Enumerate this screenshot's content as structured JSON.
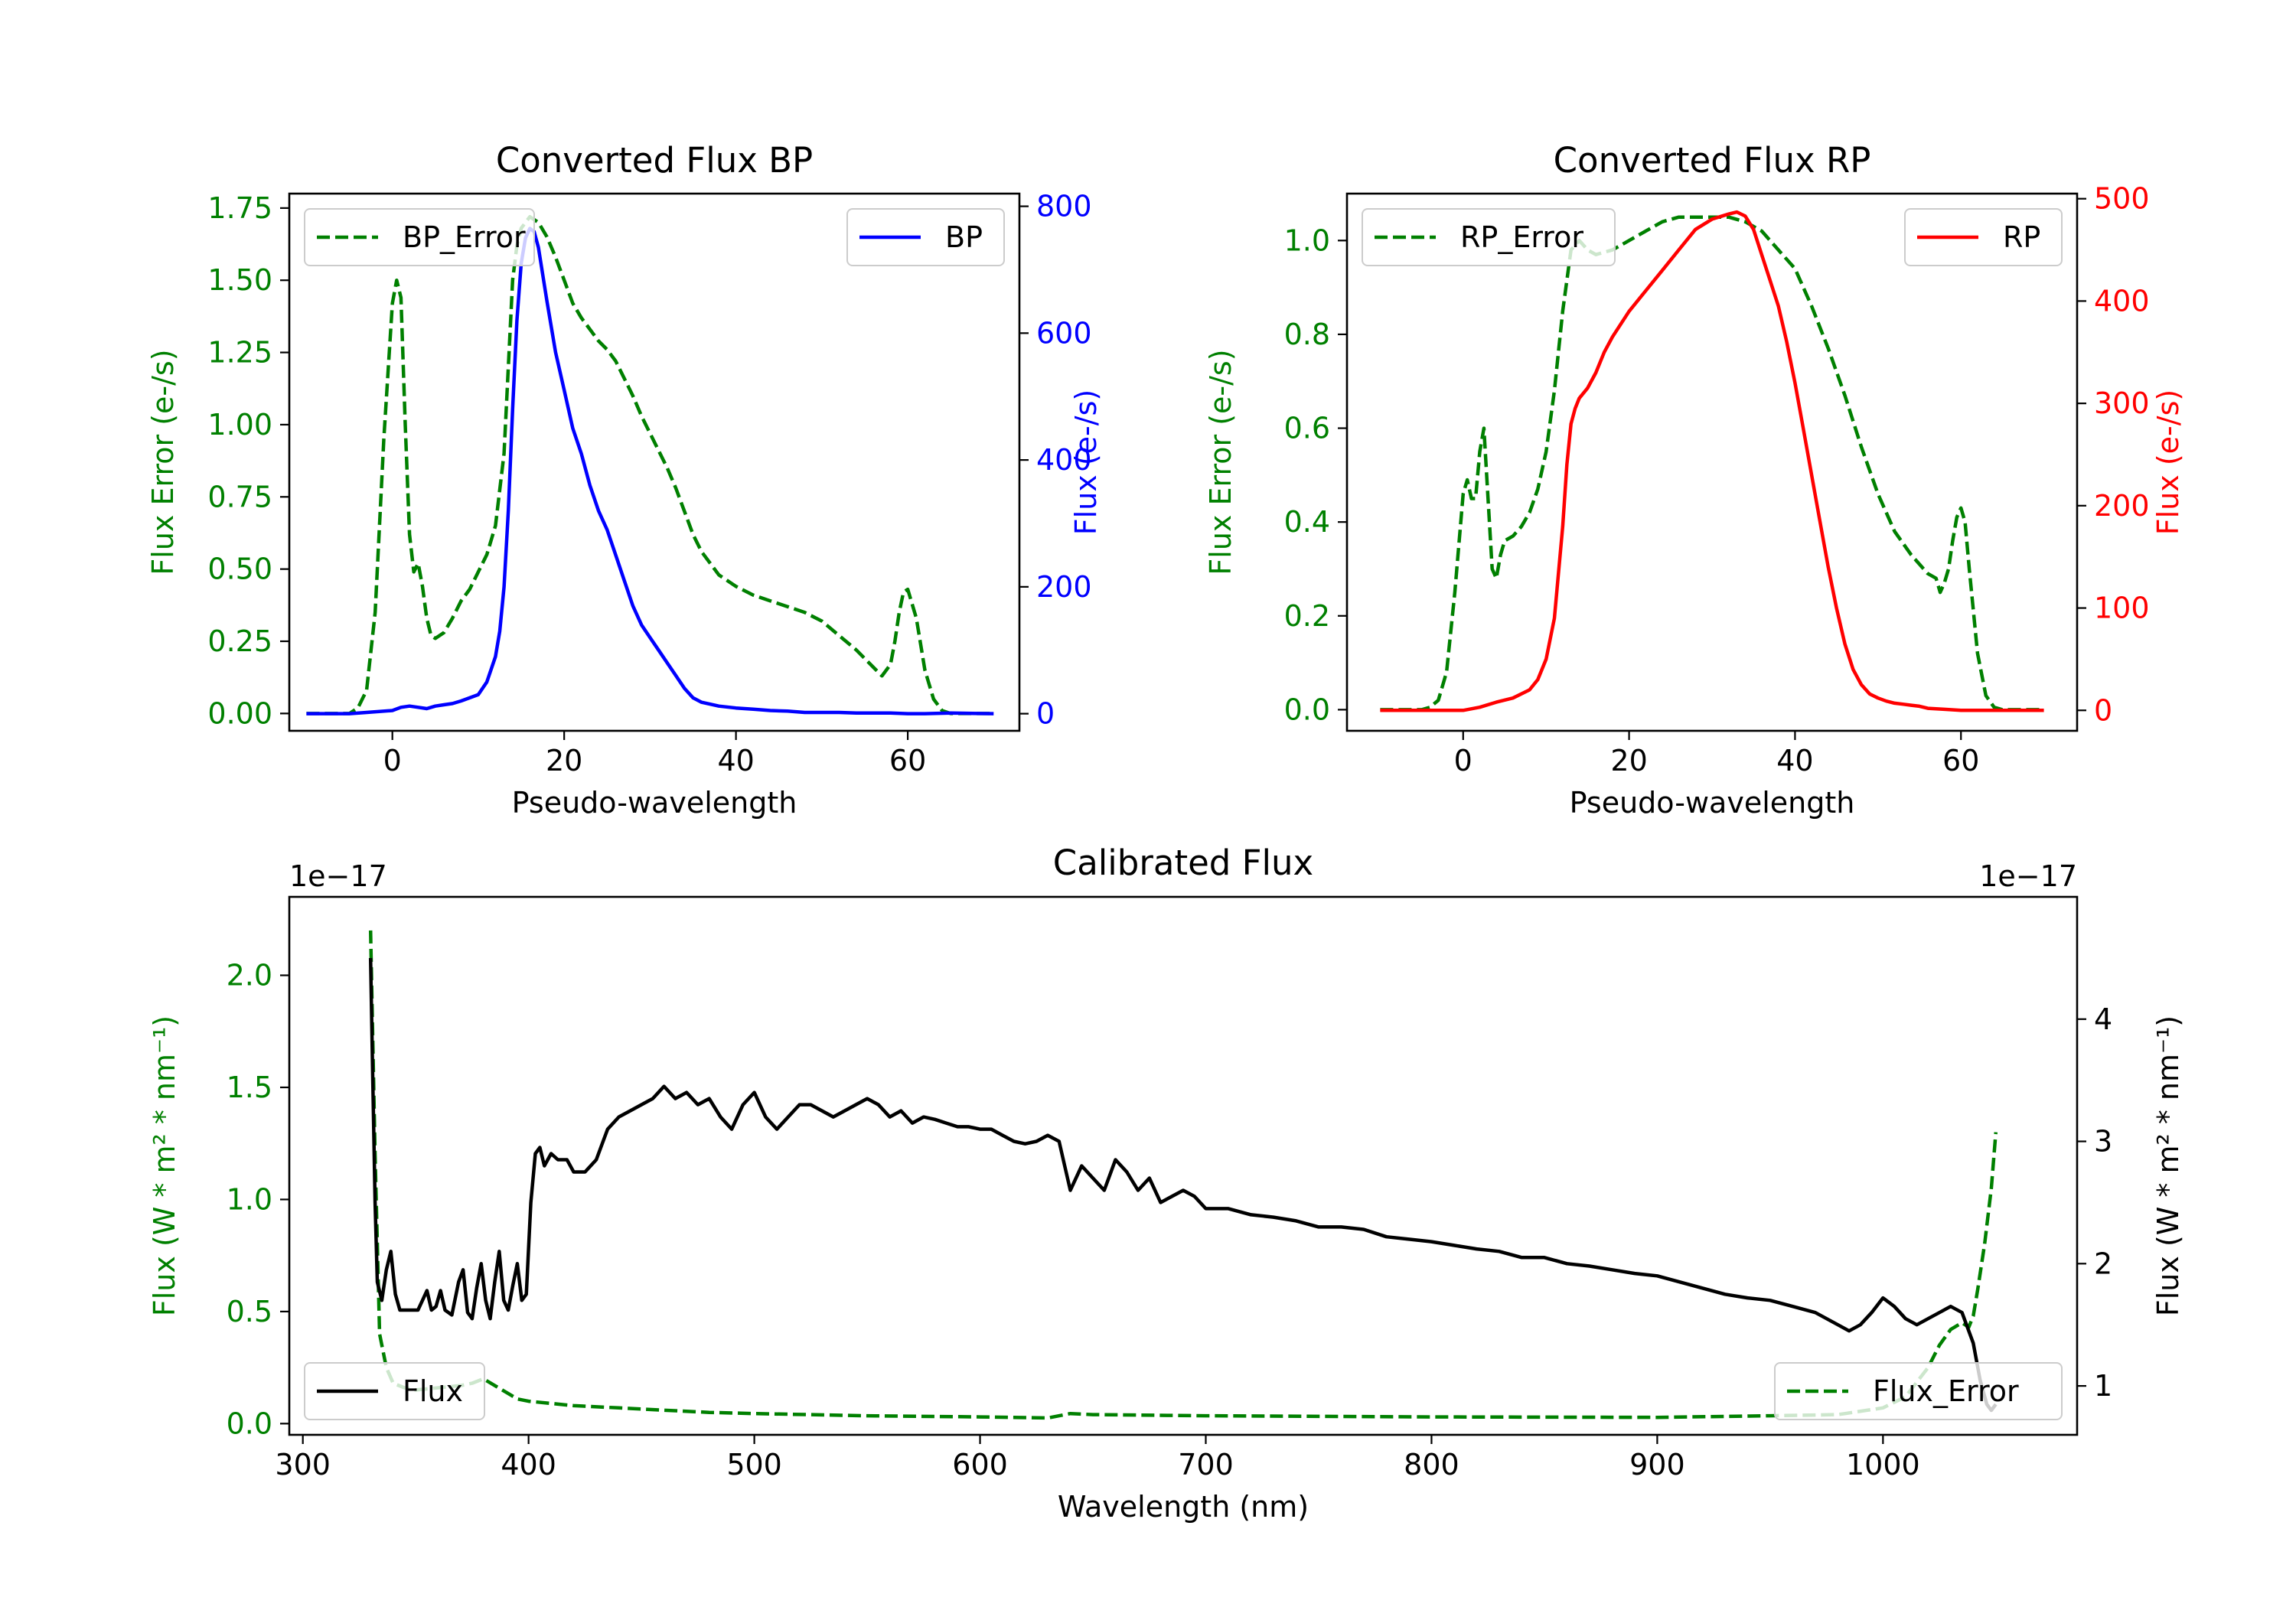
{
  "colors": {
    "green": "#008000",
    "blue": "#0000ff",
    "red": "#ff0000",
    "black": "#000000"
  },
  "chart_data": [
    {
      "type": "line",
      "title": "Converted Flux BP",
      "xlabel": "Pseudo-wavelength",
      "ylabel_left": "Flux Error (e-/s)",
      "ylabel_right": "Flux (e-/s)",
      "xlim": [
        -12,
        73
      ],
      "ylim_left": [
        -0.06,
        1.8
      ],
      "ylim_right": [
        -27,
        820
      ],
      "xticks": [
        0,
        20,
        40,
        60
      ],
      "yticks_left": [
        "0.00",
        "0.25",
        "0.50",
        "0.75",
        "1.00",
        "1.25",
        "1.50",
        "1.75"
      ],
      "yticks_right": [
        0,
        200,
        400,
        600,
        800
      ],
      "legend_left": "BP_Error",
      "legend_right": "BP",
      "series": [
        {
          "name": "BP_Error",
          "axis": "left",
          "color": "#008000",
          "dashed": true,
          "x": [
            -10,
            -5,
            -4,
            -3,
            -2,
            -1,
            0,
            0.5,
            1,
            1.5,
            2,
            2.5,
            3,
            3.5,
            4,
            4.5,
            5,
            6,
            7,
            8,
            9,
            10,
            11,
            12,
            13,
            13.5,
            14,
            14.5,
            15,
            16,
            17,
            18,
            19,
            20,
            21,
            22,
            23,
            24,
            25,
            26,
            27,
            28,
            29,
            30,
            31,
            32,
            33,
            34,
            35,
            36,
            37,
            38,
            40,
            42,
            44,
            46,
            48,
            50,
            52,
            54,
            56,
            57,
            58,
            58.5,
            59,
            59.5,
            60,
            61,
            62,
            63,
            64,
            65,
            70
          ],
          "y": [
            0,
            0,
            0.02,
            0.08,
            0.35,
            0.95,
            1.42,
            1.5,
            1.44,
            1.0,
            0.62,
            0.49,
            0.52,
            0.44,
            0.33,
            0.27,
            0.26,
            0.28,
            0.33,
            0.39,
            0.43,
            0.49,
            0.55,
            0.65,
            0.9,
            1.2,
            1.5,
            1.62,
            1.68,
            1.72,
            1.7,
            1.65,
            1.58,
            1.5,
            1.42,
            1.37,
            1.33,
            1.29,
            1.26,
            1.22,
            1.16,
            1.1,
            1.03,
            0.97,
            0.91,
            0.85,
            0.78,
            0.7,
            0.62,
            0.56,
            0.52,
            0.48,
            0.44,
            0.41,
            0.39,
            0.37,
            0.35,
            0.32,
            0.27,
            0.22,
            0.16,
            0.13,
            0.17,
            0.25,
            0.35,
            0.42,
            0.43,
            0.33,
            0.15,
            0.05,
            0.01,
            0,
            0
          ]
        },
        {
          "name": "BP",
          "axis": "right",
          "color": "#0000ff",
          "dashed": false,
          "x": [
            -10,
            -5,
            -3,
            0,
            1,
            2,
            3,
            4,
            5,
            6,
            7,
            8,
            9,
            10,
            11,
            12,
            12.5,
            13,
            13.5,
            14,
            14.5,
            15,
            15.5,
            16,
            16.5,
            17,
            18,
            19,
            20,
            21,
            22,
            23,
            24,
            25,
            26,
            27,
            28,
            29,
            30,
            31,
            32,
            33,
            34,
            35,
            36,
            37,
            38,
            40,
            42,
            44,
            46,
            48,
            50,
            52,
            54,
            56,
            58,
            60,
            62,
            65,
            70
          ],
          "y": [
            0,
            0,
            2,
            5,
            10,
            12,
            10,
            8,
            12,
            14,
            16,
            20,
            25,
            30,
            50,
            90,
            130,
            200,
            320,
            480,
            620,
            710,
            750,
            765,
            760,
            735,
            650,
            570,
            510,
            450,
            410,
            360,
            320,
            290,
            250,
            210,
            170,
            140,
            120,
            100,
            80,
            60,
            40,
            25,
            18,
            15,
            12,
            9,
            7,
            5,
            4,
            2,
            2,
            2,
            1,
            1,
            1,
            0,
            0,
            1,
            0
          ]
        }
      ]
    },
    {
      "type": "line",
      "title": "Converted Flux RP",
      "xlabel": "Pseudo-wavelength",
      "ylabel_left": "Flux Error (e-/s)",
      "ylabel_right": "Flux (e-/s)",
      "xlim": [
        -14,
        74
      ],
      "ylim_left": [
        -0.045,
        1.1
      ],
      "ylim_right": [
        -20,
        505
      ],
      "xticks": [
        0,
        20,
        40,
        60
      ],
      "yticks_left": [
        "0.0",
        "0.2",
        "0.4",
        "0.6",
        "0.8",
        "1.0"
      ],
      "yticks_right": [
        0,
        100,
        200,
        300,
        400,
        500
      ],
      "legend_left": "RP_Error",
      "legend_right": "RP",
      "series": [
        {
          "name": "RP_Error",
          "axis": "left",
          "color": "#008000",
          "dashed": true,
          "x": [
            -10,
            -5,
            -4,
            -3,
            -2,
            -1,
            0,
            0.5,
            1,
            1.5,
            2,
            2.5,
            3,
            3.5,
            4,
            4.5,
            5,
            6,
            7,
            8,
            9,
            10,
            11,
            12,
            13,
            14,
            15,
            16,
            18,
            20,
            22,
            24,
            26,
            28,
            30,
            32,
            34,
            36,
            38,
            40,
            42,
            44,
            46,
            48,
            50,
            52,
            54,
            56,
            57,
            57.5,
            58,
            58.5,
            59,
            59.5,
            60,
            60.5,
            61,
            62,
            63,
            64,
            65,
            70
          ],
          "y": [
            0,
            0,
            0.005,
            0.02,
            0.08,
            0.25,
            0.46,
            0.49,
            0.45,
            0.45,
            0.55,
            0.6,
            0.45,
            0.3,
            0.28,
            0.33,
            0.36,
            0.37,
            0.39,
            0.42,
            0.47,
            0.55,
            0.68,
            0.85,
            0.98,
            1.0,
            0.98,
            0.97,
            0.98,
            1.0,
            1.02,
            1.04,
            1.05,
            1.05,
            1.05,
            1.05,
            1.04,
            1.02,
            0.98,
            0.94,
            0.86,
            0.77,
            0.67,
            0.56,
            0.46,
            0.38,
            0.33,
            0.29,
            0.28,
            0.25,
            0.27,
            0.3,
            0.36,
            0.41,
            0.43,
            0.4,
            0.3,
            0.12,
            0.03,
            0.005,
            0,
            0
          ]
        },
        {
          "name": "RP",
          "axis": "right",
          "color": "#ff0000",
          "dashed": false,
          "x": [
            -10,
            -5,
            -2,
            0,
            2,
            4,
            6,
            8,
            9,
            10,
            11,
            12,
            12.5,
            13,
            13.5,
            14,
            14.5,
            15,
            16,
            17,
            18,
            20,
            22,
            24,
            26,
            28,
            30,
            32,
            33,
            34,
            35,
            36,
            37,
            38,
            39,
            40,
            41,
            42,
            43,
            44,
            45,
            46,
            47,
            48,
            49,
            50,
            51,
            52,
            53,
            54,
            55,
            56,
            58,
            60,
            62,
            65,
            70
          ],
          "y": [
            0,
            0,
            0,
            0,
            3,
            8,
            12,
            20,
            30,
            50,
            90,
            180,
            240,
            280,
            295,
            305,
            310,
            315,
            330,
            350,
            365,
            390,
            410,
            430,
            450,
            470,
            480,
            485,
            487,
            483,
            470,
            445,
            420,
            395,
            360,
            320,
            275,
            230,
            185,
            140,
            100,
            65,
            40,
            25,
            16,
            12,
            9,
            7,
            6,
            5,
            4,
            2,
            1,
            0,
            0,
            0,
            0
          ]
        }
      ]
    },
    {
      "type": "line",
      "title": "Calibrated Flux",
      "xlabel": "Wavelength (nm)",
      "ylabel_left": "Flux (W * m² * nm⁻¹)",
      "ylabel_right": "Flux (W * m² * nm⁻¹)",
      "offset_left": "1e−17",
      "offset_right": "1e−17",
      "xlim": [
        294,
        1086
      ],
      "ylim_left": [
        -0.05,
        2.35
      ],
      "ylim_right": [
        0.6,
        5.0
      ],
      "xticks": [
        300,
        400,
        500,
        600,
        700,
        800,
        900,
        1000
      ],
      "yticks_left": [
        "0.0",
        "0.5",
        "1.0",
        "1.5",
        "2.0"
      ],
      "yticks_right": [
        1,
        2,
        3,
        4
      ],
      "legend_left": "Flux",
      "legend_right": "Flux_Error",
      "series": [
        {
          "name": "Flux_Error",
          "axis": "left",
          "color": "#008000",
          "dashed": true,
          "x": [
            330,
            332,
            334,
            337,
            340,
            345,
            350,
            360,
            370,
            375,
            380,
            385,
            390,
            395,
            400,
            410,
            420,
            440,
            460,
            480,
            500,
            550,
            600,
            630,
            640,
            650,
            700,
            800,
            900,
            950,
            980,
            1000,
            1010,
            1020,
            1025,
            1030,
            1035,
            1038,
            1040,
            1042,
            1045,
            1048,
            1050
          ],
          "y": [
            2.2,
            1.2,
            0.4,
            0.25,
            0.18,
            0.16,
            0.15,
            0.16,
            0.17,
            0.18,
            0.2,
            0.17,
            0.14,
            0.11,
            0.1,
            0.09,
            0.08,
            0.07,
            0.06,
            0.05,
            0.045,
            0.035,
            0.03,
            0.025,
            0.045,
            0.04,
            0.035,
            0.03,
            0.028,
            0.035,
            0.04,
            0.07,
            0.12,
            0.25,
            0.35,
            0.42,
            0.45,
            0.43,
            0.48,
            0.6,
            0.8,
            1.05,
            1.3
          ]
        },
        {
          "name": "Flux",
          "axis": "right",
          "color": "#000000",
          "dashed": false,
          "x": [
            330,
            331,
            332,
            333,
            335,
            337,
            339,
            341,
            343,
            347,
            351,
            353,
            355,
            357,
            359,
            361,
            363,
            366,
            369,
            371,
            373,
            375,
            377,
            379,
            381,
            383,
            385,
            387,
            389,
            391,
            393,
            395,
            397,
            399,
            401,
            403,
            405,
            407,
            410,
            413,
            417,
            420,
            425,
            430,
            435,
            440,
            445,
            450,
            455,
            460,
            465,
            470,
            475,
            480,
            485,
            490,
            495,
            500,
            505,
            510,
            515,
            520,
            525,
            530,
            535,
            540,
            545,
            550,
            555,
            560,
            565,
            570,
            575,
            580,
            585,
            590,
            595,
            600,
            605,
            610,
            615,
            620,
            625,
            630,
            635,
            640,
            645,
            650,
            655,
            660,
            665,
            670,
            675,
            680,
            685,
            690,
            695,
            700,
            710,
            720,
            730,
            740,
            750,
            760,
            770,
            780,
            790,
            800,
            810,
            820,
            830,
            840,
            850,
            860,
            870,
            880,
            890,
            900,
            910,
            920,
            930,
            940,
            950,
            960,
            970,
            980,
            985,
            990,
            995,
            1000,
            1005,
            1010,
            1015,
            1020,
            1025,
            1030,
            1035,
            1040,
            1043,
            1046,
            1048,
            1050
          ],
          "y": [
            4.5,
            3.5,
            2.5,
            1.85,
            1.7,
            1.95,
            2.1,
            1.75,
            1.62,
            1.62,
            1.62,
            1.7,
            1.78,
            1.62,
            1.65,
            1.78,
            1.62,
            1.58,
            1.85,
            1.95,
            1.6,
            1.55,
            1.8,
            2.0,
            1.7,
            1.55,
            1.85,
            2.1,
            1.7,
            1.62,
            1.82,
            2.0,
            1.7,
            1.75,
            2.5,
            2.9,
            2.95,
            2.8,
            2.9,
            2.85,
            2.85,
            2.75,
            2.75,
            2.85,
            3.1,
            3.2,
            3.25,
            3.3,
            3.35,
            3.45,
            3.35,
            3.4,
            3.3,
            3.35,
            3.2,
            3.1,
            3.3,
            3.4,
            3.2,
            3.1,
            3.2,
            3.3,
            3.3,
            3.25,
            3.2,
            3.25,
            3.3,
            3.35,
            3.3,
            3.2,
            3.25,
            3.15,
            3.2,
            3.18,
            3.15,
            3.12,
            3.12,
            3.1,
            3.1,
            3.05,
            3.0,
            2.98,
            3.0,
            3.05,
            3.0,
            2.6,
            2.8,
            2.7,
            2.6,
            2.85,
            2.75,
            2.6,
            2.7,
            2.5,
            2.55,
            2.6,
            2.55,
            2.45,
            2.45,
            2.4,
            2.38,
            2.35,
            2.3,
            2.3,
            2.28,
            2.22,
            2.2,
            2.18,
            2.15,
            2.12,
            2.1,
            2.05,
            2.05,
            2.0,
            1.98,
            1.95,
            1.92,
            1.9,
            1.85,
            1.8,
            1.75,
            1.72,
            1.7,
            1.65,
            1.6,
            1.5,
            1.45,
            1.5,
            1.6,
            1.72,
            1.65,
            1.55,
            1.5,
            1.55,
            1.6,
            1.65,
            1.6,
            1.35,
            1.05,
            0.85,
            0.8,
            0.85
          ]
        }
      ]
    }
  ]
}
